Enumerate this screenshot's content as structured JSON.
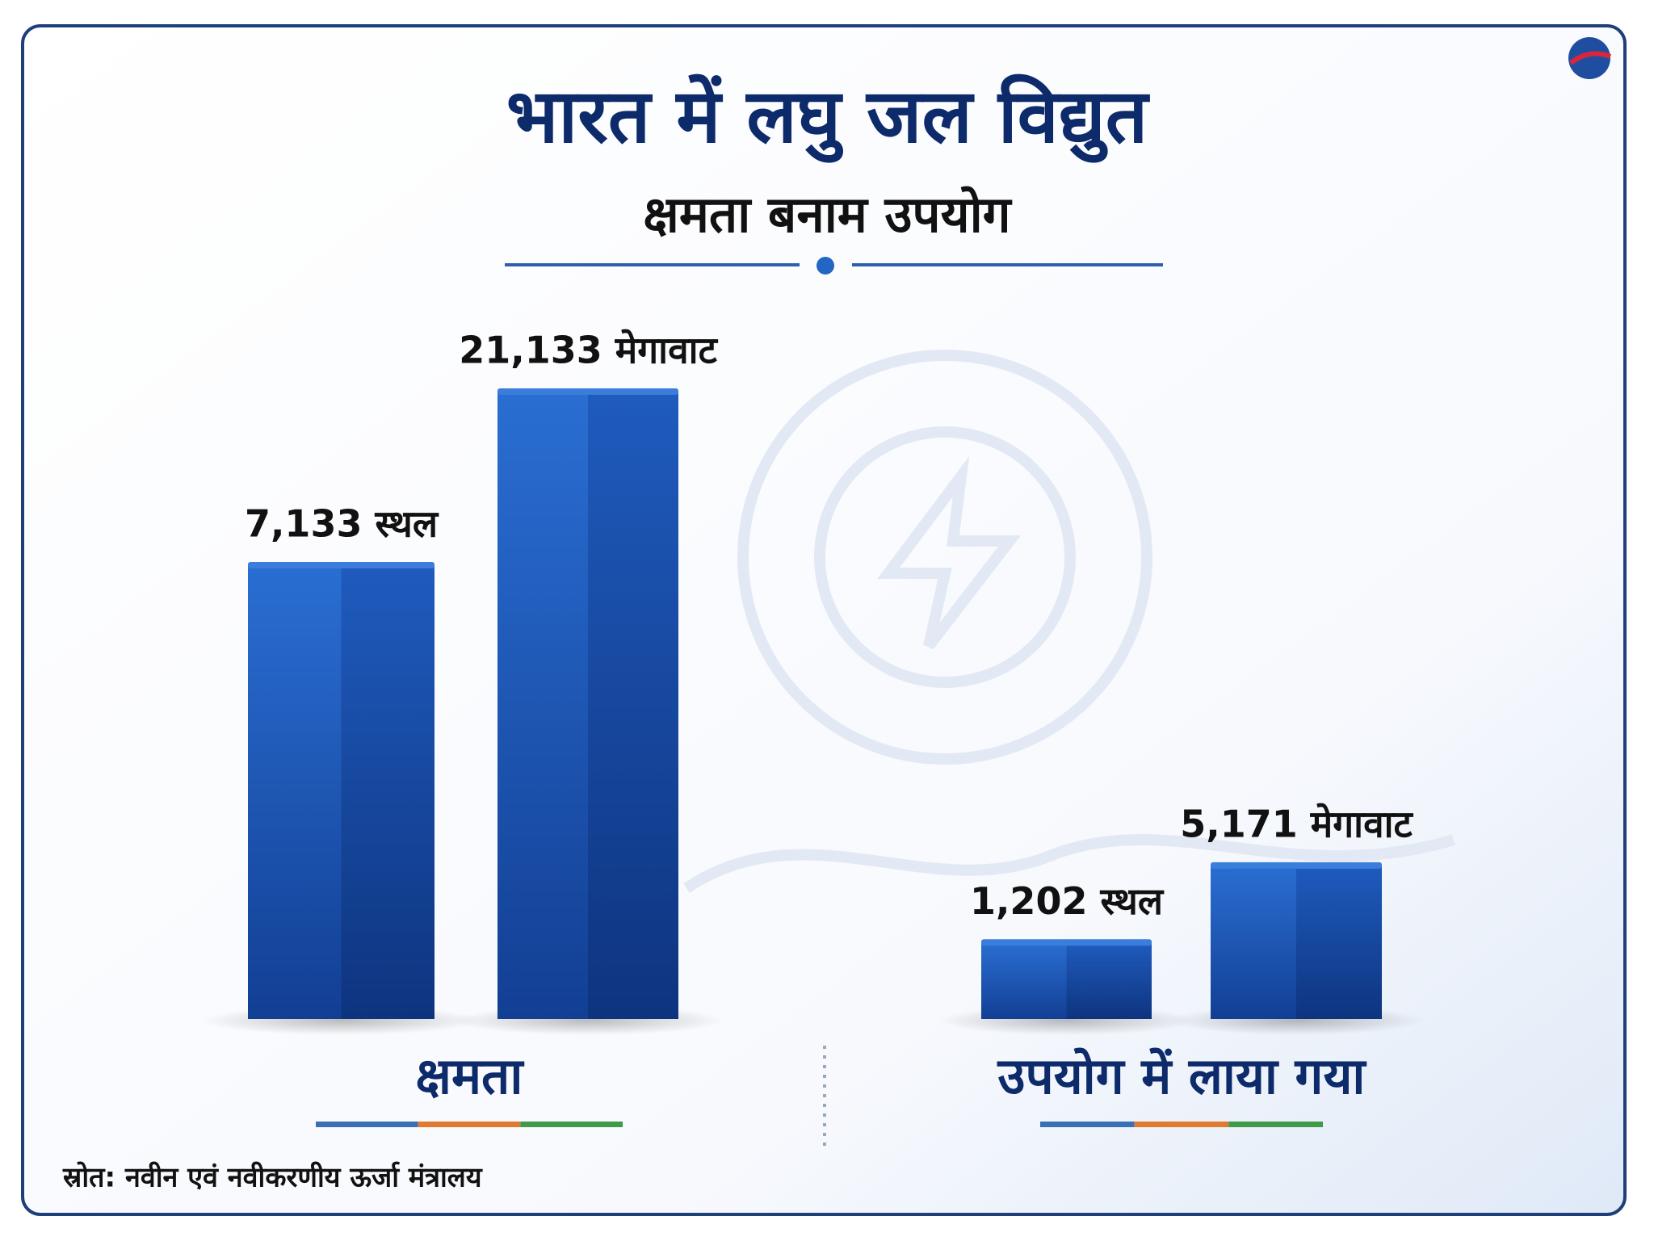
{
  "chart_data": {
    "type": "bar",
    "title": "भारत में लघु जल विद्युत",
    "subtitle": "क्षमता बनाम उपयोग",
    "categories": [
      "क्षमता",
      "उपयोग में लाया गया"
    ],
    "series": [
      {
        "color": "#2162c6",
        "values": [
          7133,
          1202
        ],
        "value_labels": [
          "7,133 स्थल",
          "1,202 स्थल"
        ]
      },
      {
        "color": "#2162c6",
        "values": [
          21133,
          5171
        ],
        "value_labels": [
          "21,133 मेगावाट",
          "5,171 मेगावाट"
        ]
      }
    ],
    "source": "स्रोत: नवीन एवं नवीकरणीय ऊर्जा मंत्रालय"
  }
}
